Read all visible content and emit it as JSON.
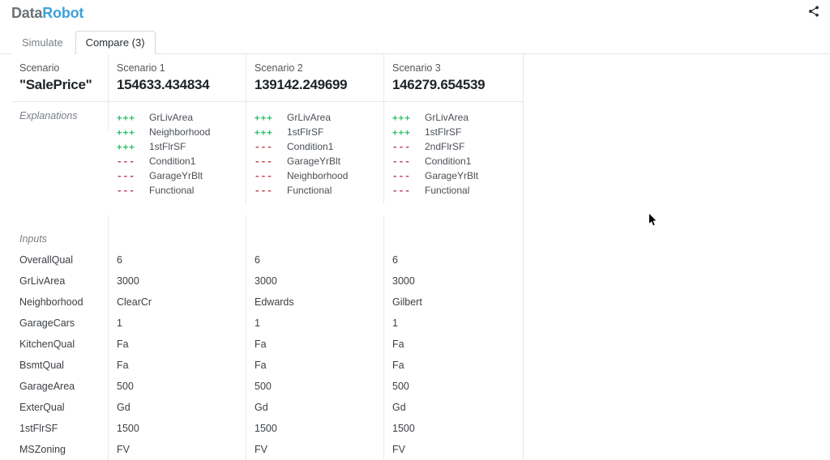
{
  "brand": {
    "part1": "Data",
    "part2": "Robot"
  },
  "tabs": {
    "simulate": "Simulate",
    "compare": "Compare (3)"
  },
  "header": {
    "col0_top": "Scenario",
    "col0_bottom": "\"SalePrice\"",
    "scenarios": [
      {
        "label": "Scenario 1",
        "value": "154633.434834"
      },
      {
        "label": "Scenario 2",
        "value": "139142.249699"
      },
      {
        "label": "Scenario 3",
        "value": "146279.654539"
      }
    ]
  },
  "sections": {
    "explanations": "Explanations",
    "inputs": "Inputs"
  },
  "explanations": [
    [
      {
        "sign": "pos",
        "glyph": "+++",
        "feature": "GrLivArea"
      },
      {
        "sign": "pos",
        "glyph": "+++",
        "feature": "Neighborhood"
      },
      {
        "sign": "pos",
        "glyph": "+++",
        "feature": "1stFlrSF"
      },
      {
        "sign": "neg",
        "glyph": "---",
        "feature": "Condition1"
      },
      {
        "sign": "neg",
        "glyph": "---",
        "feature": "GarageYrBlt"
      },
      {
        "sign": "neg",
        "glyph": "---",
        "feature": "Functional"
      }
    ],
    [
      {
        "sign": "pos",
        "glyph": "+++",
        "feature": "GrLivArea"
      },
      {
        "sign": "pos",
        "glyph": "+++",
        "feature": "1stFlrSF"
      },
      {
        "sign": "neg",
        "glyph": "---",
        "feature": "Condition1"
      },
      {
        "sign": "neg",
        "glyph": "---",
        "feature": "GarageYrBlt"
      },
      {
        "sign": "neg",
        "glyph": "---",
        "feature": "Neighborhood"
      },
      {
        "sign": "neg",
        "glyph": "---",
        "feature": "Functional"
      }
    ],
    [
      {
        "sign": "pos",
        "glyph": "+++",
        "feature": "GrLivArea"
      },
      {
        "sign": "pos",
        "glyph": "+++",
        "feature": "1stFlrSF"
      },
      {
        "sign": "neg",
        "glyph": "---",
        "feature": "2ndFlrSF"
      },
      {
        "sign": "neg",
        "glyph": "---",
        "feature": "Condition1"
      },
      {
        "sign": "neg",
        "glyph": "---",
        "feature": "GarageYrBlt"
      },
      {
        "sign": "neg",
        "glyph": "---",
        "feature": "Functional"
      }
    ]
  ],
  "inputs": [
    {
      "name": "OverallQual",
      "values": [
        "6",
        "6",
        "6"
      ]
    },
    {
      "name": "GrLivArea",
      "values": [
        "3000",
        "3000",
        "3000"
      ]
    },
    {
      "name": "Neighborhood",
      "values": [
        "ClearCr",
        "Edwards",
        "Gilbert"
      ]
    },
    {
      "name": "GarageCars",
      "values": [
        "1",
        "1",
        "1"
      ]
    },
    {
      "name": "KitchenQual",
      "values": [
        "Fa",
        "Fa",
        "Fa"
      ]
    },
    {
      "name": "BsmtQual",
      "values": [
        "Fa",
        "Fa",
        "Fa"
      ]
    },
    {
      "name": "GarageArea",
      "values": [
        "500",
        "500",
        "500"
      ]
    },
    {
      "name": "ExterQual",
      "values": [
        "Gd",
        "Gd",
        "Gd"
      ]
    },
    {
      "name": "1stFlrSF",
      "values": [
        "1500",
        "1500",
        "1500"
      ]
    },
    {
      "name": "MSZoning",
      "values": [
        "FV",
        "FV",
        "FV"
      ]
    }
  ]
}
